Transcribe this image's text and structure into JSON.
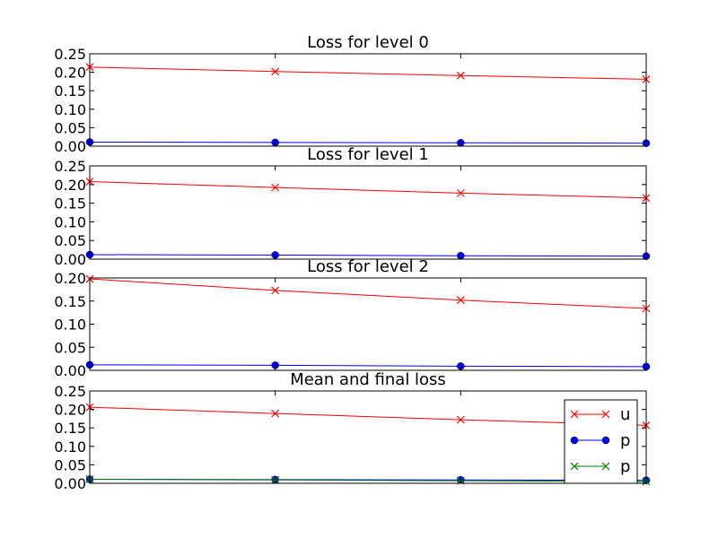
{
  "chart_data": [
    {
      "type": "line",
      "title": "Loss for level 0",
      "xlabel": "",
      "ylabel": "",
      "x": [
        0,
        1,
        2,
        3
      ],
      "ylim": [
        0,
        0.25
      ],
      "yticks": [
        "0.00",
        "0.05",
        "0.10",
        "0.15",
        "0.20",
        "0.25"
      ],
      "grid": false,
      "series": [
        {
          "values": [
            0.214,
            0.202,
            0.191,
            0.181
          ],
          "color": "#ff0000",
          "marker": "x"
        },
        {
          "values": [
            0.011,
            0.01,
            0.009,
            0.008
          ],
          "color": "#0000ff",
          "marker": "o"
        }
      ]
    },
    {
      "type": "line",
      "title": "Loss for level 1",
      "xlabel": "",
      "ylabel": "",
      "x": [
        0,
        1,
        2,
        3
      ],
      "ylim": [
        0,
        0.25
      ],
      "yticks": [
        "0.00",
        "0.05",
        "0.10",
        "0.15",
        "0.20",
        "0.25"
      ],
      "grid": false,
      "series": [
        {
          "values": [
            0.208,
            0.192,
            0.177,
            0.164
          ],
          "color": "#ff0000",
          "marker": "x"
        },
        {
          "values": [
            0.012,
            0.011,
            0.009,
            0.008
          ],
          "color": "#0000ff",
          "marker": "o"
        }
      ]
    },
    {
      "type": "line",
      "title": "Loss for level 2",
      "xlabel": "",
      "ylabel": "",
      "x": [
        0,
        1,
        2,
        3
      ],
      "ylim": [
        0,
        0.2
      ],
      "yticks": [
        "0.00",
        "0.05",
        "0.10",
        "0.15",
        "0.20"
      ],
      "grid": false,
      "series": [
        {
          "values": [
            0.198,
            0.173,
            0.152,
            0.134
          ],
          "color": "#ff0000",
          "marker": "x"
        },
        {
          "values": [
            0.012,
            0.011,
            0.009,
            0.008
          ],
          "color": "#0000ff",
          "marker": "o"
        }
      ]
    },
    {
      "type": "line",
      "title": "Mean and final loss",
      "xlabel": "",
      "ylabel": "",
      "x": [
        0,
        1,
        2,
        3
      ],
      "ylim": [
        0,
        0.25
      ],
      "yticks": [
        "0.00",
        "0.05",
        "0.10",
        "0.15",
        "0.20",
        "0.25"
      ],
      "grid": false,
      "legend_position": "lower-right",
      "series": [
        {
          "name": "u",
          "values": [
            0.206,
            0.189,
            0.172,
            0.157
          ],
          "color": "#ff0000",
          "marker": "x"
        },
        {
          "name": "p",
          "values": [
            0.011,
            0.01,
            0.009,
            0.008
          ],
          "color": "#0000ff",
          "marker": "o"
        },
        {
          "name": "p",
          "values": [
            0.011,
            0.009,
            0.007,
            0.005
          ],
          "color": "#008000",
          "marker": "x"
        }
      ]
    }
  ]
}
